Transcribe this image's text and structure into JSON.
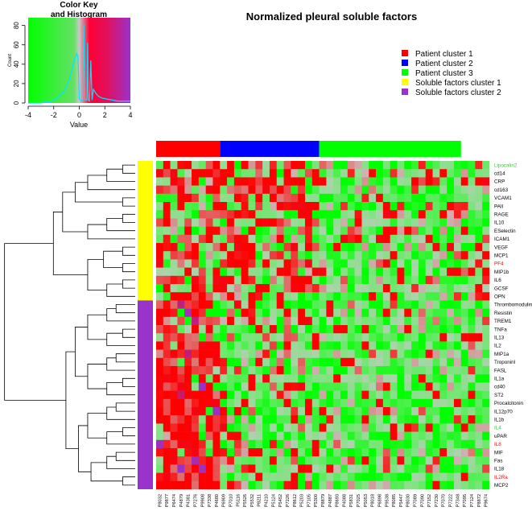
{
  "chart_data": {
    "type": "heatmap",
    "title": "Normalized pleural soluble factors",
    "color_key": {
      "title_lines": [
        "Color Key",
        "and Histogram"
      ],
      "xlabel": "Value",
      "ylabel": "Count",
      "x_ticks": [
        -4,
        -2,
        0,
        2,
        4
      ],
      "y_ticks": [
        0,
        20,
        40,
        60,
        80
      ],
      "xlim": [
        -4,
        4
      ],
      "ylim": [
        0,
        88
      ],
      "histogram": [
        [
          -4.0,
          0
        ],
        [
          -3.8,
          0
        ],
        [
          -3.6,
          0
        ],
        [
          -3.4,
          0
        ],
        [
          -3.2,
          0
        ],
        [
          -3.0,
          0
        ],
        [
          -2.8,
          1
        ],
        [
          -2.6,
          1
        ],
        [
          -2.4,
          1
        ],
        [
          -2.2,
          2
        ],
        [
          -2.0,
          3
        ],
        [
          -1.8,
          5
        ],
        [
          -1.6,
          7
        ],
        [
          -1.4,
          9
        ],
        [
          -1.2,
          12
        ],
        [
          -1.0,
          17
        ],
        [
          -0.8,
          24
        ],
        [
          -0.6,
          33
        ],
        [
          -0.4,
          44
        ],
        [
          -0.2,
          51
        ],
        [
          -0.1,
          48
        ],
        [
          0.0,
          4
        ],
        [
          0.1,
          3
        ],
        [
          0.2,
          2
        ],
        [
          0.3,
          3
        ],
        [
          0.35,
          81
        ],
        [
          0.45,
          3
        ],
        [
          0.55,
          3
        ],
        [
          0.6,
          4
        ],
        [
          0.65,
          62
        ],
        [
          0.7,
          3
        ],
        [
          0.8,
          2
        ],
        [
          0.9,
          44
        ],
        [
          1.0,
          3
        ],
        [
          1.1,
          14
        ],
        [
          1.3,
          10
        ],
        [
          1.5,
          7
        ],
        [
          1.8,
          5
        ],
        [
          2.2,
          4
        ],
        [
          2.6,
          3
        ],
        [
          3.0,
          2
        ],
        [
          3.5,
          2
        ],
        [
          3.8,
          2
        ],
        [
          4.0,
          2
        ]
      ]
    },
    "legend": [
      {
        "label": "Patient cluster 1",
        "color": "#ff0000"
      },
      {
        "label": "Patient cluster 2",
        "color": "#0000ff"
      },
      {
        "label": "Patient cluster 3",
        "color": "#00ff00"
      },
      {
        "label": "Soluble factors cluster 1",
        "color": "#ffff00"
      },
      {
        "label": "Soluble factors cluster 2",
        "color": "#9933cc"
      }
    ],
    "column_clusters": [
      {
        "cluster": 1,
        "count": 9,
        "color": "#ff0000"
      },
      {
        "cluster": 2,
        "count": 14,
        "color": "#0000ff"
      },
      {
        "cluster": 3,
        "count": 20,
        "color": "#00ff00"
      }
    ],
    "row_clusters": [
      {
        "cluster": 1,
        "count": 17,
        "color": "#ffff00"
      },
      {
        "cluster": 2,
        "count": 23,
        "color": "#9933cc"
      }
    ],
    "columns": [
      "P8032",
      "P9877",
      "P6474",
      "P4879",
      "P4381",
      "P7276",
      "P9908",
      "P7338",
      "P4680",
      "P6909",
      "P7010",
      "P5116",
      "P5526",
      "P5532",
      "P8211",
      "P4210",
      "P5124",
      "P5452",
      "P7226",
      "P8612",
      "P5203",
      "P7105",
      "P5300",
      "P8879",
      "P4887",
      "P8693",
      "P4088",
      "P5831",
      "P7025",
      "P5053",
      "P8018",
      "P6898",
      "P9538",
      "P8085",
      "P5447",
      "P8030",
      "P7089",
      "P7090",
      "P7152",
      "P7230",
      "P7070",
      "P7222",
      "P7348",
      "P7095",
      "P7124",
      "P8872",
      "P9674"
    ],
    "rows": [
      {
        "name": "Lipocalin2",
        "color": "#33cc33"
      },
      {
        "name": "cd14",
        "color": "#000000"
      },
      {
        "name": "CRP",
        "color": "#000000"
      },
      {
        "name": "cd163",
        "color": "#000000"
      },
      {
        "name": "VCAM1",
        "color": "#000000"
      },
      {
        "name": "PAII",
        "color": "#000000"
      },
      {
        "name": "RAGE",
        "color": "#000000"
      },
      {
        "name": "IL10",
        "color": "#000000"
      },
      {
        "name": "ESelectin",
        "color": "#000000"
      },
      {
        "name": "ICAM1",
        "color": "#000000"
      },
      {
        "name": "VEGF",
        "color": "#000000"
      },
      {
        "name": "MCP1",
        "color": "#000000"
      },
      {
        "name": "PF4",
        "color": "#ff0000"
      },
      {
        "name": "MIP1b",
        "color": "#000000"
      },
      {
        "name": "IL6",
        "color": "#000000"
      },
      {
        "name": "GCSF",
        "color": "#000000"
      },
      {
        "name": "OPN",
        "color": "#000000"
      },
      {
        "name": "Thrombomodulin",
        "color": "#000000"
      },
      {
        "name": "Resistin",
        "color": "#000000"
      },
      {
        "name": "TREM1",
        "color": "#000000"
      },
      {
        "name": "TNFa",
        "color": "#000000"
      },
      {
        "name": "IL13",
        "color": "#000000"
      },
      {
        "name": "IL2",
        "color": "#000000"
      },
      {
        "name": "MIP1a",
        "color": "#000000"
      },
      {
        "name": "TroponinI",
        "color": "#000000"
      },
      {
        "name": "FASL",
        "color": "#000000"
      },
      {
        "name": "IL1a",
        "color": "#000000"
      },
      {
        "name": "cd40",
        "color": "#000000"
      },
      {
        "name": "ST2",
        "color": "#000000"
      },
      {
        "name": "Procalcitonin",
        "color": "#000000"
      },
      {
        "name": "IL12p70",
        "color": "#000000"
      },
      {
        "name": "IL1b",
        "color": "#000000"
      },
      {
        "name": "IL4",
        "color": "#33cc33"
      },
      {
        "name": "uPAR",
        "color": "#000000"
      },
      {
        "name": "IL8",
        "color": "#ff0000"
      },
      {
        "name": "MIF",
        "color": "#000000"
      },
      {
        "name": "Fas",
        "color": "#000000"
      },
      {
        "name": "IL18",
        "color": "#000000"
      },
      {
        "name": "IL2Ra",
        "color": "#ff0000"
      },
      {
        "name": "MCP2",
        "color": "#000000"
      }
    ],
    "value_range": [
      -4,
      4
    ],
    "colors": {
      "low": "#00ff00",
      "mid": "#c8c8c8",
      "high": "#ff0000",
      "very_high": "#9933cc"
    }
  }
}
